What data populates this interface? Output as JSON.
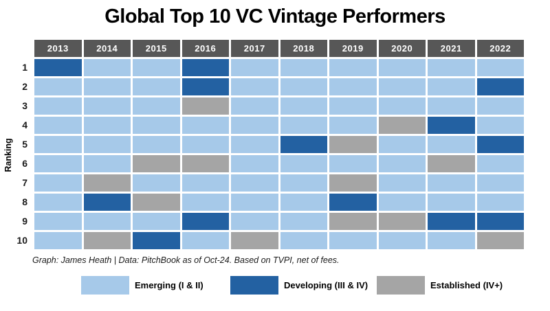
{
  "title": "Global Top 10 VC Vintage Performers",
  "y_axis_label": "Ranking",
  "caption": "Graph: James Heath | Data: PitchBook as of Oct-24. Based on TVPI, net of fees.",
  "colors": {
    "emerging": "#A6C9E9",
    "developing": "#2361A2",
    "established": "#A5A5A5",
    "header_bg": "#575757",
    "header_text": "#FFFFFF"
  },
  "legend": {
    "items": [
      {
        "key": "emerging",
        "label": "Emerging (I & II)",
        "color": "#A6C9E9"
      },
      {
        "key": "developing",
        "label": "Developing (III & IV)",
        "color": "#2361A2"
      },
      {
        "key": "established",
        "label": "Established (IV+)",
        "color": "#A5A5A5"
      }
    ]
  },
  "chart_data": {
    "type": "heatmap",
    "title": "Global Top 10 VC Vintage Performers",
    "xlabel": "",
    "ylabel": "Ranking",
    "legend_position": "bottom",
    "legend_entries": [
      "Emerging (I & II)",
      "Developing (III & IV)",
      "Established (IV+)"
    ],
    "columns": [
      "2013",
      "2014",
      "2015",
      "2016",
      "2017",
      "2018",
      "2019",
      "2020",
      "2021",
      "2022"
    ],
    "rows": [
      "1",
      "2",
      "3",
      "4",
      "5",
      "6",
      "7",
      "8",
      "9",
      "10"
    ],
    "grid": [
      [
        "developing",
        "emerging",
        "emerging",
        "developing",
        "emerging",
        "emerging",
        "emerging",
        "emerging",
        "emerging",
        "emerging"
      ],
      [
        "emerging",
        "emerging",
        "emerging",
        "developing",
        "emerging",
        "emerging",
        "emerging",
        "emerging",
        "emerging",
        "developing"
      ],
      [
        "emerging",
        "emerging",
        "emerging",
        "established",
        "emerging",
        "emerging",
        "emerging",
        "emerging",
        "emerging",
        "emerging"
      ],
      [
        "emerging",
        "emerging",
        "emerging",
        "emerging",
        "emerging",
        "emerging",
        "emerging",
        "established",
        "developing",
        "emerging"
      ],
      [
        "emerging",
        "emerging",
        "emerging",
        "emerging",
        "emerging",
        "developing",
        "established",
        "emerging",
        "emerging",
        "developing"
      ],
      [
        "emerging",
        "emerging",
        "established",
        "established",
        "emerging",
        "emerging",
        "emerging",
        "emerging",
        "established",
        "emerging"
      ],
      [
        "emerging",
        "established",
        "emerging",
        "emerging",
        "emerging",
        "emerging",
        "established",
        "emerging",
        "emerging",
        "emerging"
      ],
      [
        "emerging",
        "developing",
        "established",
        "emerging",
        "emerging",
        "emerging",
        "developing",
        "emerging",
        "emerging",
        "emerging"
      ],
      [
        "emerging",
        "emerging",
        "emerging",
        "developing",
        "emerging",
        "emerging",
        "established",
        "established",
        "developing",
        "developing"
      ],
      [
        "emerging",
        "established",
        "developing",
        "emerging",
        "established",
        "emerging",
        "emerging",
        "emerging",
        "emerging",
        "established"
      ]
    ]
  }
}
